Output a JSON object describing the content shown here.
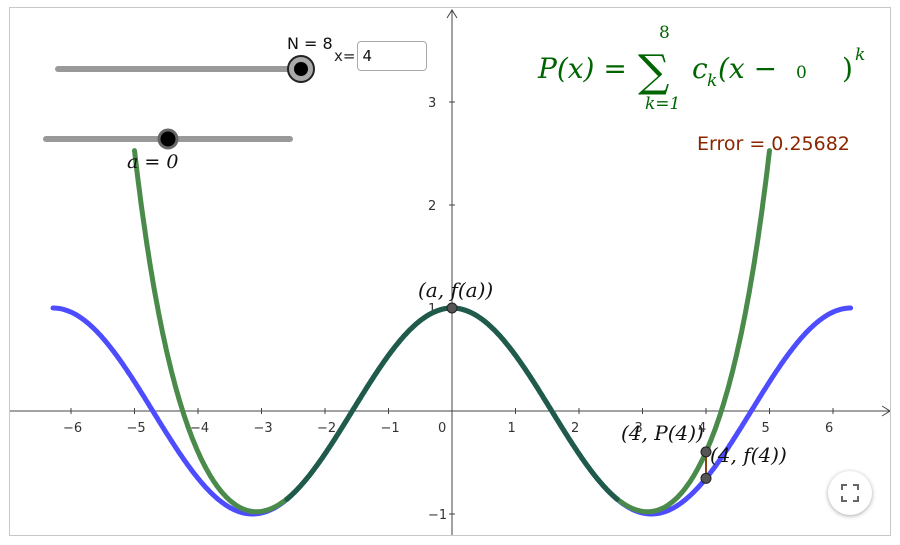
{
  "slider_n": {
    "label": "N = 8",
    "value": 8
  },
  "slider_a": {
    "label": "a = 0",
    "value": 0
  },
  "x_input": {
    "label": "x=",
    "value": "4"
  },
  "formula": {
    "lhs": "P(x) =",
    "sum_upper": "8",
    "sum_lower": "k=1",
    "body": "c",
    "subscript": "k",
    "open": "(x −",
    "center": "0",
    "close": ")",
    "power": "k"
  },
  "error_label": "Error = 0.25682",
  "point_labels": {
    "af": "(a, f(a))",
    "p4": "(4, P(4))",
    "f4": "(4, f(4))"
  },
  "axes": {
    "x_ticks": [
      "−6",
      "−5",
      "−4",
      "−3",
      "−2",
      "−1",
      "0",
      "1",
      "2",
      "3",
      "4",
      "5",
      "6"
    ],
    "y_ticks": [
      "−1",
      "1",
      "2",
      "3"
    ]
  },
  "colors": {
    "f_curve": "#4d4dff",
    "p_curve": "#4a8a4a",
    "overlap": "#1f5a4a",
    "formula": "#006400",
    "error": "#8b2500",
    "slider_track": "#999999"
  },
  "icons": {
    "fullscreen": "fullscreen-icon"
  }
}
